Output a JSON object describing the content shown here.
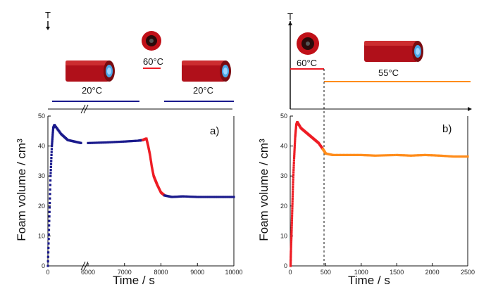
{
  "figure": {
    "colors": {
      "phase_20C": "#1a1a8c",
      "phase_60C": "#ee1c24",
      "phase_55C": "#ff8c1a",
      "axis": "#111111",
      "cylinder": "#b0101a",
      "cylinder_end": "#4aa7e6"
    },
    "thermo_a": {
      "t_symbol": "T",
      "labels": [
        "20°C",
        "60°C",
        "20°C"
      ]
    },
    "thermo_b": {
      "t_symbol": "T",
      "labels": [
        "60°C",
        "55°C"
      ]
    },
    "icons": [
      "foam-cylinder-icon",
      "micelle-icon"
    ]
  },
  "chart_data": [
    {
      "type": "scatter",
      "panel_label": "a)",
      "xlabel": "Time / s",
      "ylabel": "Foam volume / cm³",
      "ylim": [
        0,
        50
      ],
      "x_ticks": [
        "0",
        "6000",
        "7000",
        "8000",
        "9000",
        "10000"
      ],
      "y_ticks": [
        "0",
        "10",
        "20",
        "30",
        "40",
        "50"
      ],
      "broken_axis": true,
      "series": [
        {
          "color": "#1a1a8c",
          "points": [
            [
              0,
              0
            ],
            [
              20,
              15
            ],
            [
              40,
              30
            ],
            [
              60,
              40
            ],
            [
              80,
              46
            ],
            [
              100,
              47
            ],
            [
              200,
              44
            ],
            [
              300,
              42
            ],
            [
              400,
              41.5
            ],
            [
              500,
              41
            ],
            [
              6000,
              41
            ],
            [
              6500,
              41.2
            ],
            [
              7000,
              41.5
            ],
            [
              7400,
              41.8
            ],
            [
              7500,
              42
            ]
          ]
        },
        {
          "color": "#ee1c24",
          "points": [
            [
              7500,
              42
            ],
            [
              7600,
              42.5
            ],
            [
              7650,
              40
            ],
            [
              7700,
              37
            ],
            [
              7750,
              33
            ],
            [
              7800,
              30
            ],
            [
              7850,
              28.5
            ],
            [
              7900,
              27
            ],
            [
              8000,
              24.5
            ],
            [
              8100,
              23.5
            ]
          ]
        },
        {
          "color": "#1a1a8c",
          "points": [
            [
              8100,
              23.5
            ],
            [
              8300,
              23
            ],
            [
              8600,
              23.2
            ],
            [
              9000,
              23
            ],
            [
              9500,
              23
            ],
            [
              10000,
              23
            ]
          ]
        }
      ]
    },
    {
      "type": "scatter",
      "panel_label": "b)",
      "xlabel": "Time / s",
      "ylabel": "Foam volume / cm³",
      "xlim": [
        0,
        2500
      ],
      "ylim": [
        0,
        50
      ],
      "x_ticks": [
        "0",
        "500",
        "1000",
        "1500",
        "2000",
        "2500"
      ],
      "y_ticks": [
        "0",
        "10",
        "20",
        "30",
        "40",
        "50"
      ],
      "series": [
        {
          "color": "#ee1c24",
          "points": [
            [
              5,
              0
            ],
            [
              10,
              5
            ],
            [
              20,
              12
            ],
            [
              30,
              20
            ],
            [
              40,
              28
            ],
            [
              55,
              36
            ],
            [
              70,
              43
            ],
            [
              85,
              47
            ],
            [
              100,
              48
            ],
            [
              150,
              46
            ],
            [
              200,
              45
            ],
            [
              250,
              44
            ],
            [
              300,
              43
            ],
            [
              350,
              42
            ],
            [
              400,
              41
            ],
            [
              460,
              39
            ]
          ]
        },
        {
          "color": "#ff8c1a",
          "points": [
            [
              460,
              39
            ],
            [
              500,
              37.5
            ],
            [
              600,
              37
            ],
            [
              800,
              37
            ],
            [
              1000,
              37
            ],
            [
              1200,
              36.8
            ],
            [
              1500,
              37
            ],
            [
              1700,
              36.8
            ],
            [
              1900,
              37
            ],
            [
              2100,
              36.8
            ],
            [
              2300,
              36.5
            ],
            [
              2500,
              36.5
            ]
          ]
        }
      ]
    }
  ]
}
